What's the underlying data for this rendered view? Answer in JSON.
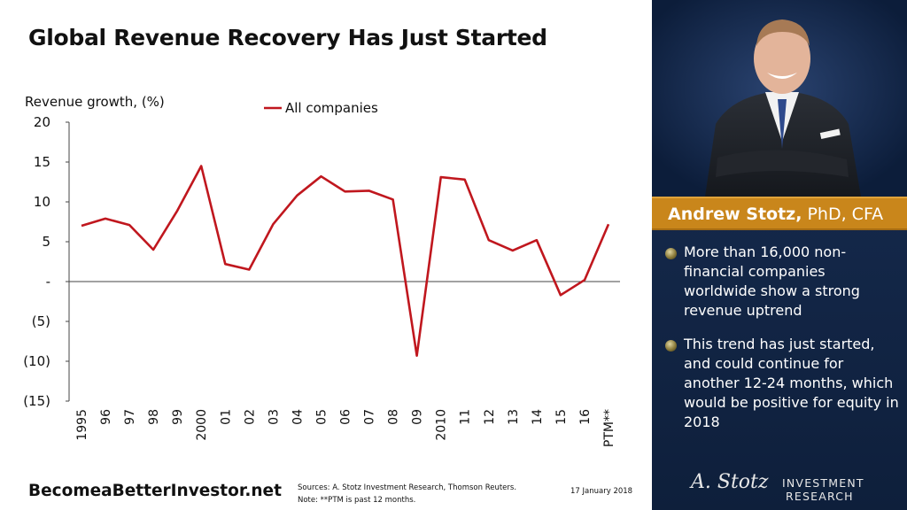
{
  "title": "Global Revenue Recovery Has Just Started",
  "chart_data": {
    "type": "line",
    "ylabel": "Revenue growth, (%)",
    "ylim": [
      -15,
      20
    ],
    "y_ticks": [
      20,
      15,
      10,
      5,
      0,
      -5,
      -10,
      -15
    ],
    "y_tick_labels": [
      "20",
      "15",
      "10",
      "5",
      "-",
      "(5)",
      "(10)",
      "(15)"
    ],
    "x": [
      "1995",
      "96",
      "97",
      "98",
      "99",
      "2000",
      "01",
      "02",
      "03",
      "04",
      "05",
      "06",
      "07",
      "08",
      "09",
      "2010",
      "11",
      "12",
      "13",
      "14",
      "15",
      "16",
      "PTM**"
    ],
    "series": [
      {
        "name": "All companies",
        "color": "#C0171E",
        "values": [
          7.0,
          7.9,
          7.1,
          4.0,
          8.9,
          14.5,
          2.2,
          1.5,
          7.2,
          10.8,
          13.2,
          11.3,
          11.4,
          10.3,
          -9.3,
          13.1,
          12.8,
          5.2,
          3.9,
          5.2,
          -1.7,
          0.2,
          7.2
        ]
      }
    ],
    "grid": false,
    "legend": "top"
  },
  "footer": {
    "site": "BecomeaBetterInvestor.net",
    "sources": "Sources: A. Stotz Investment Research, Thomson Reuters.",
    "note": "Note:  **PTM is past 12 months.",
    "date": "17 January 2018"
  },
  "panel": {
    "name_bold": "Andrew Stotz,",
    "name_rest": " PhD, CFA",
    "bullets": [
      "More than 16,000 non-financial companies worldwide show a strong revenue uptrend",
      "This trend has just started, and could continue for another 12-24 months, which would be positive for equity in 2018"
    ],
    "signature": "A. Stotz",
    "brand_line1": "INVESTMENT",
    "brand_line2": "RESEARCH",
    "colors": {
      "panel_bg": "#0e1f3b",
      "name_bar": "#C9861B"
    }
  }
}
